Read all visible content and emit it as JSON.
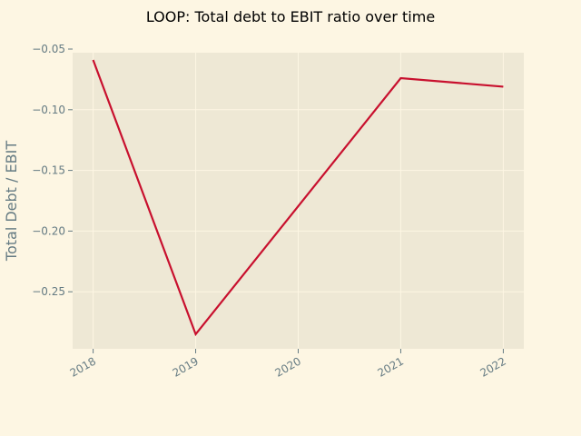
{
  "chart_data": {
    "type": "line",
    "title": "LOOP: Total debt to EBIT ratio over time",
    "xlabel": "",
    "ylabel": "Total Debt / EBIT",
    "x": [
      "2018",
      "2019",
      "2020",
      "2021",
      "2022"
    ],
    "x_values": [
      2018,
      2019,
      2021,
      2022
    ],
    "series": [
      {
        "values": [
          -0.059,
          -0.285,
          -0.074,
          -0.081
        ]
      }
    ],
    "ylim": [
      -0.297,
      -0.053
    ],
    "xlim": [
      2017.8,
      2022.2
    ],
    "yticks": [
      -0.05,
      -0.1,
      -0.15,
      -0.2,
      -0.25
    ],
    "ytick_labels": [
      "−0.05",
      "−0.10",
      "−0.15",
      "−0.20",
      "−0.25"
    ],
    "grid": true,
    "colors": {
      "background": "#fdf6e3",
      "plot_background": "#eee8d5",
      "line": "#c8102e",
      "grid": "#fdf6e3",
      "tick_text": "#657b83"
    }
  }
}
